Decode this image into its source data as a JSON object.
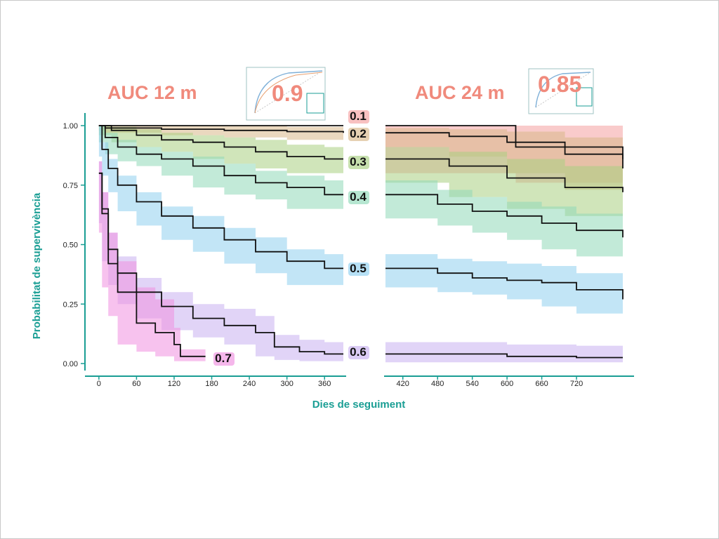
{
  "colors": {
    "accent_teal": "#1a9e94",
    "auc_salmon": "#f08a7c",
    "band_0_1": "#f4a0a0",
    "band_0_2": "#d9b88a",
    "band_0_3": "#a9cf82",
    "band_0_4": "#8fd9b8",
    "band_0_5": "#8fd0ef",
    "band_0_6": "#c8b0f0",
    "band_0_7": "#f090e0"
  },
  "header": {
    "auc12_title": "AUC 12  m",
    "auc12_value": "0.9",
    "auc24_title": "AUC 24  m",
    "auc24_value": "0.85"
  },
  "chart_data": {
    "type": "line",
    "xlabel": "Dies de seguiment",
    "ylabel": "Probabilitat de supervivència",
    "ylim": [
      0,
      1
    ],
    "yticks": [
      "0.00",
      "0.25",
      "0.50",
      "0.75",
      "1.00"
    ],
    "panels": [
      {
        "xlim": [
          -20,
          390
        ],
        "xticks": [
          0,
          60,
          120,
          180,
          240,
          300,
          360
        ]
      },
      {
        "xlim": [
          390,
          800
        ],
        "xticks": [
          420,
          480,
          540,
          600,
          660,
          720
        ]
      }
    ],
    "grid": false,
    "legend": "inline",
    "series": [
      {
        "name": "0.1",
        "color": "#f4a0a0",
        "x": [
          0,
          390,
          615,
          800
        ],
        "y": [
          1.0,
          1.0,
          0.91,
          0.86
        ],
        "lo": [
          1.0,
          1.0,
          0.8,
          0.76
        ],
        "hi": [
          1.0,
          1.0,
          1.0,
          1.0
        ]
      },
      {
        "name": "0.2",
        "color": "#d9b88a",
        "x": [
          0,
          10,
          100,
          200,
          300,
          390,
          500,
          600,
          700,
          800
        ],
        "y": [
          1.0,
          0.99,
          0.985,
          0.98,
          0.975,
          0.97,
          0.955,
          0.93,
          0.88,
          0.82
        ],
        "lo": [
          1.0,
          0.98,
          0.97,
          0.96,
          0.95,
          0.94,
          0.91,
          0.87,
          0.8,
          0.73
        ],
        "hi": [
          1.0,
          1.0,
          1.0,
          1.0,
          0.995,
          0.99,
          0.985,
          0.975,
          0.95,
          0.92
        ]
      },
      {
        "name": "0.3",
        "color": "#a9cf82",
        "x": [
          0,
          20,
          60,
          100,
          150,
          200,
          250,
          300,
          360,
          390,
          500,
          600,
          700,
          800
        ],
        "y": [
          1.0,
          0.98,
          0.96,
          0.94,
          0.93,
          0.91,
          0.89,
          0.87,
          0.86,
          0.86,
          0.83,
          0.78,
          0.74,
          0.72
        ],
        "lo": [
          1.0,
          0.96,
          0.93,
          0.91,
          0.89,
          0.86,
          0.84,
          0.82,
          0.8,
          0.8,
          0.76,
          0.7,
          0.65,
          0.62
        ],
        "hi": [
          1.0,
          0.995,
          0.985,
          0.97,
          0.96,
          0.95,
          0.94,
          0.92,
          0.91,
          0.91,
          0.89,
          0.86,
          0.83,
          0.82
        ]
      },
      {
        "name": "0.4",
        "color": "#8fd9b8",
        "x": [
          0,
          10,
          30,
          60,
          100,
          150,
          200,
          250,
          300,
          360,
          390,
          480,
          540,
          600,
          660,
          720,
          800
        ],
        "y": [
          1.0,
          0.95,
          0.91,
          0.88,
          0.86,
          0.83,
          0.79,
          0.76,
          0.74,
          0.71,
          0.71,
          0.67,
          0.64,
          0.62,
          0.59,
          0.56,
          0.53
        ],
        "lo": [
          1.0,
          0.93,
          0.88,
          0.85,
          0.83,
          0.79,
          0.74,
          0.71,
          0.69,
          0.65,
          0.65,
          0.61,
          0.58,
          0.55,
          0.52,
          0.48,
          0.45
        ],
        "hi": [
          1.0,
          0.97,
          0.94,
          0.91,
          0.89,
          0.87,
          0.84,
          0.81,
          0.79,
          0.77,
          0.77,
          0.73,
          0.7,
          0.68,
          0.66,
          0.63,
          0.6
        ]
      },
      {
        "name": "0.5",
        "color": "#8fd0ef",
        "x": [
          0,
          5,
          15,
          30,
          60,
          100,
          150,
          200,
          250,
          300,
          360,
          390,
          480,
          540,
          600,
          660,
          720,
          800
        ],
        "y": [
          1.0,
          0.9,
          0.82,
          0.75,
          0.68,
          0.62,
          0.57,
          0.52,
          0.47,
          0.43,
          0.4,
          0.4,
          0.38,
          0.36,
          0.35,
          0.34,
          0.31,
          0.27
        ],
        "lo": [
          1.0,
          0.87,
          0.79,
          0.72,
          0.64,
          0.58,
          0.52,
          0.47,
          0.42,
          0.38,
          0.33,
          0.33,
          0.32,
          0.3,
          0.29,
          0.27,
          0.24,
          0.21
        ],
        "hi": [
          1.0,
          0.93,
          0.86,
          0.79,
          0.72,
          0.66,
          0.62,
          0.57,
          0.53,
          0.48,
          0.46,
          0.46,
          0.44,
          0.43,
          0.42,
          0.41,
          0.38,
          0.35
        ]
      },
      {
        "name": "0.6",
        "color": "#c8b0f0",
        "x": [
          0,
          5,
          15,
          30,
          60,
          100,
          150,
          200,
          250,
          280,
          320,
          360,
          390,
          600,
          720,
          800
        ],
        "y": [
          0.8,
          0.65,
          0.48,
          0.38,
          0.3,
          0.24,
          0.19,
          0.16,
          0.13,
          0.07,
          0.05,
          0.04,
          0.04,
          0.03,
          0.025,
          0.025
        ],
        "lo": [
          0.75,
          0.59,
          0.43,
          0.33,
          0.25,
          0.19,
          0.14,
          0.11,
          0.08,
          0.03,
          0.015,
          0.01,
          0.01,
          0.005,
          0.005,
          0.005
        ],
        "hi": [
          0.85,
          0.72,
          0.55,
          0.45,
          0.36,
          0.3,
          0.25,
          0.23,
          0.2,
          0.12,
          0.1,
          0.09,
          0.09,
          0.08,
          0.075,
          0.075
        ]
      },
      {
        "name": "0.7",
        "color": "#f090e0",
        "x": [
          0,
          5,
          15,
          30,
          60,
          90,
          120,
          130,
          170
        ],
        "y": [
          0.8,
          0.63,
          0.42,
          0.3,
          0.17,
          0.13,
          0.08,
          0.03,
          0.03
        ],
        "lo": [
          0.75,
          0.55,
          0.32,
          0.2,
          0.08,
          0.05,
          0.03,
          0.01,
          0.01
        ],
        "hi": [
          0.85,
          0.72,
          0.55,
          0.43,
          0.32,
          0.27,
          0.15,
          0.06,
          0.06
        ]
      }
    ]
  }
}
